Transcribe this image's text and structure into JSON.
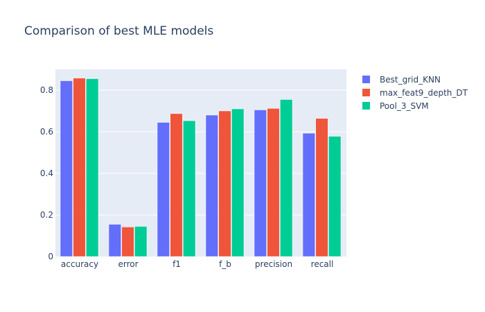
{
  "chart_data": {
    "type": "bar",
    "title": "Comparison of best MLE models",
    "xlabel": "",
    "ylabel": "",
    "categories": [
      "accuracy",
      "error",
      "f1",
      "f_b",
      "precision",
      "recall"
    ],
    "series": [
      {
        "name": "Best_grid_KNN",
        "color": "#636efa",
        "values": [
          0.845,
          0.155,
          0.645,
          0.68,
          0.705,
          0.593
        ]
      },
      {
        "name": "max_feat9_depth_DT",
        "color": "#ef553b",
        "values": [
          0.858,
          0.142,
          0.687,
          0.7,
          0.712,
          0.664
        ]
      },
      {
        "name": "Pool_3_SVM",
        "color": "#00cc96",
        "values": [
          0.855,
          0.145,
          0.653,
          0.71,
          0.755,
          0.578
        ]
      }
    ],
    "yticks": [
      "0",
      "0.2",
      "0.4",
      "0.6",
      "0.8"
    ],
    "ylim": [
      0,
      0.9
    ],
    "grid": true,
    "legend": "right",
    "colors": {
      "plot_bg": "#e5ecf6",
      "grid": "#ffffff",
      "text": "#2a3f5f"
    }
  }
}
